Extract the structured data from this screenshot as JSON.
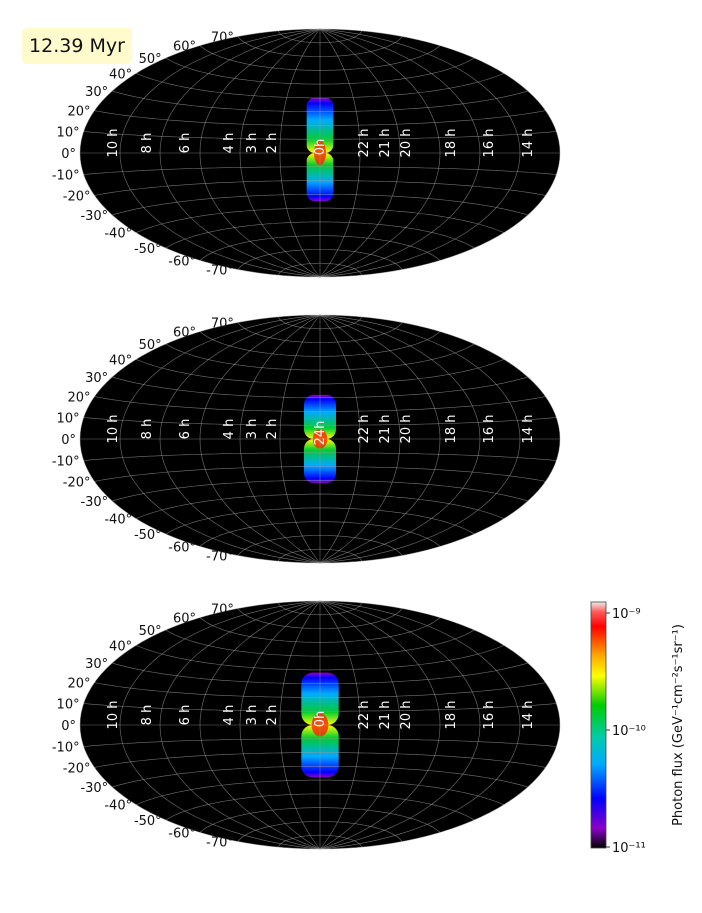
{
  "time_label": "12.39 Myr",
  "chart_data": [
    {
      "type": "heatmap",
      "projection": "aitoff",
      "grid": true,
      "lat_ticks": [
        "70°",
        "60°",
        "50°",
        "40°",
        "30°",
        "20°",
        "10°",
        "0°",
        "-10°",
        "-20°",
        "-30°",
        "-40°",
        "-50°",
        "-60°",
        "-70°"
      ],
      "lat_values": [
        70,
        60,
        50,
        40,
        30,
        20,
        10,
        0,
        -10,
        -20,
        -30,
        -40,
        -50,
        -60,
        -70
      ],
      "ra_ticks": [
        "10 h",
        "8 h",
        "6 h",
        "4 h",
        "3 h",
        "2 h",
        "22 h",
        "21 h",
        "20 h",
        "18 h",
        "16 h",
        "14 h"
      ],
      "center_label": "0h",
      "lobe": {
        "north_extent_deg": 40,
        "south_extent_deg": -35,
        "half_width_deg": 10
      }
    },
    {
      "type": "heatmap",
      "projection": "aitoff",
      "grid": true,
      "lat_ticks": [
        "70°",
        "60°",
        "50°",
        "40°",
        "30°",
        "20°",
        "10°",
        "0°",
        "-10°",
        "-20°",
        "-30°",
        "-40°",
        "-50°",
        "-60°",
        "-70°"
      ],
      "lat_values": [
        70,
        60,
        50,
        40,
        30,
        20,
        10,
        0,
        -10,
        -20,
        -30,
        -40,
        -50,
        -60,
        -70
      ],
      "ra_ticks": [
        "10 h",
        "8 h",
        "6 h",
        "4 h",
        "3 h",
        "2 h",
        "22 h",
        "21 h",
        "20 h",
        "18 h",
        "16 h",
        "14 h"
      ],
      "center_label": "24h",
      "lobe": {
        "north_extent_deg": 32,
        "south_extent_deg": -32,
        "half_width_deg": 12
      }
    },
    {
      "type": "heatmap",
      "projection": "aitoff",
      "grid": true,
      "lat_ticks": [
        "70°",
        "60°",
        "50°",
        "40°",
        "30°",
        "20°",
        "10°",
        "0°",
        "-10°",
        "-20°",
        "-30°",
        "-40°",
        "-50°",
        "-60°",
        "-70°"
      ],
      "lat_values": [
        70,
        60,
        50,
        40,
        30,
        20,
        10,
        0,
        -10,
        -20,
        -30,
        -40,
        -50,
        -60,
        -70
      ],
      "ra_ticks": [
        "10 h",
        "8 h",
        "6 h",
        "4 h",
        "3 h",
        "2 h",
        "22 h",
        "21 h",
        "20 h",
        "18 h",
        "16 h",
        "14 h"
      ],
      "center_label": "0h",
      "lobe": {
        "north_extent_deg": 38,
        "south_extent_deg": -38,
        "half_width_deg": 14
      }
    }
  ],
  "colorbar": {
    "label": "Photon flux (GeV⁻¹cm⁻²s⁻¹sr⁻¹)",
    "ticks": [
      "10⁻⁹",
      "10⁻¹⁰",
      "10⁻¹¹"
    ],
    "tick_values": [
      1e-09,
      1e-10,
      1e-11
    ],
    "scale": "log",
    "colors": [
      "#e6e6e6",
      "#ff0000",
      "#ffaa00",
      "#ffff00",
      "#00cc00",
      "#00ccaa",
      "#00aaff",
      "#0000ff",
      "#8a00c8",
      "#000000"
    ]
  }
}
